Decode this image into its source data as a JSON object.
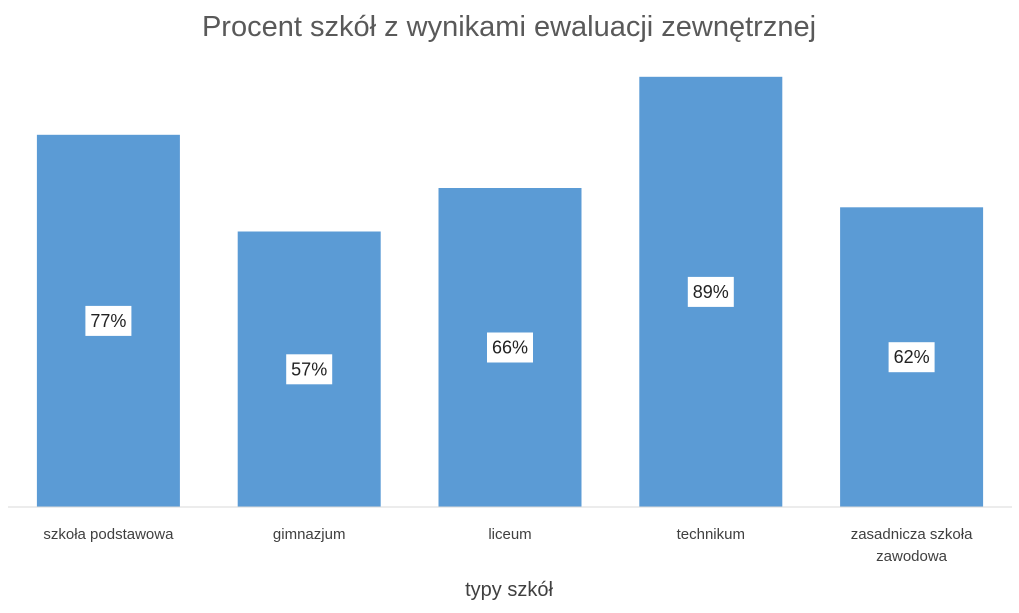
{
  "chart_data": {
    "type": "bar",
    "title": "Procent szkół z wynikami ewaluacji zewnętrznej",
    "xlabel": "typy szkół",
    "ylabel": "",
    "categories": [
      [
        "szkoła podstawowa"
      ],
      [
        "gimnazjum"
      ],
      [
        "liceum"
      ],
      [
        "technikum"
      ],
      [
        "zasadnicza szkoła",
        "zawodowa"
      ]
    ],
    "values": [
      77,
      57,
      66,
      89,
      62
    ],
    "value_labels": [
      "77%",
      "57%",
      "66%",
      "89%",
      "62%"
    ],
    "ylim": [
      0,
      90
    ],
    "grid": false,
    "legend": "none",
    "bar_color": "#5B9BD5",
    "axis_color": "#D9D9D9"
  }
}
